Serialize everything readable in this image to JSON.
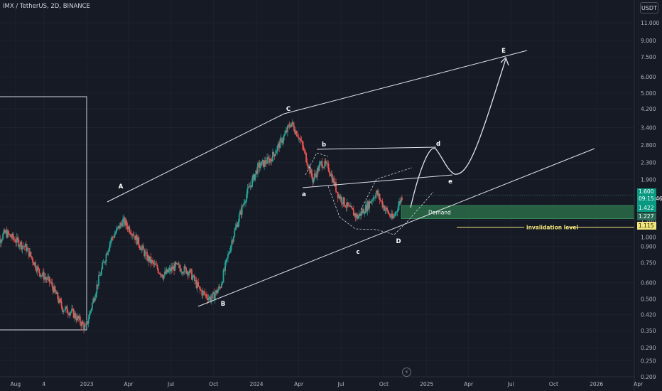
{
  "header": {
    "title": "IMX / TetherUS, 2D, BINANCE"
  },
  "currency_button": "USDT",
  "price_tags": {
    "price": "1.600",
    "countdown": "09:15:46",
    "demand_high": "1.422",
    "demand_low": "1.227",
    "invalidation": "1.115"
  },
  "flash_icon": "lightning-icon",
  "colors": {
    "background": "#161a25",
    "bull": "#26a69a",
    "bear": "#ef5350",
    "demand_zone": "#2e7d4f",
    "invalidation": "#f2e678",
    "wave_lines": "#e0e3eb"
  },
  "chart_data": {
    "type": "candlestick",
    "symbol": "IMX / TetherUS, 2D, BINANCE",
    "y_scale": "log",
    "y_ticks": [
      "11.000",
      "9.000",
      "7.500",
      "6.000",
      "5.000",
      "4.200",
      "3.400",
      "2.800",
      "2.300",
      "1.900",
      "1.600",
      "1.400",
      "1.200",
      "1.000",
      "0.900",
      "0.750",
      "0.600",
      "0.500",
      "0.420",
      "0.350",
      "0.290",
      "0.250",
      "0.209"
    ],
    "x_ticks": [
      "Aug",
      "4",
      "2023",
      "Apr",
      "Jul",
      "Oct",
      "2024",
      "Apr",
      "Jul",
      "Oct",
      "2025",
      "Apr",
      "Jul",
      "Oct",
      "2026",
      "Apr"
    ],
    "price_path": [
      [
        "2022-06-15",
        0.9
      ],
      [
        "2022-07-10",
        1.05
      ],
      [
        "2022-08-05",
        0.95
      ],
      [
        "2022-08-25",
        0.88
      ],
      [
        "2022-09-20",
        0.68
      ],
      [
        "2022-10-15",
        0.6
      ],
      [
        "2022-11-10",
        0.45
      ],
      [
        "2022-12-01",
        0.43
      ],
      [
        "2022-12-30",
        0.36
      ],
      [
        "2023-01-25",
        0.6
      ],
      [
        "2023-02-20",
        0.95
      ],
      [
        "2023-03-20",
        1.2
      ],
      [
        "2023-04-10",
        1.05
      ],
      [
        "2023-05-10",
        0.8
      ],
      [
        "2023-06-15",
        0.65
      ],
      [
        "2023-07-10",
        0.72
      ],
      [
        "2023-08-10",
        0.68
      ],
      [
        "2023-09-01",
        0.55
      ],
      [
        "2023-09-25",
        0.5
      ],
      [
        "2023-10-15",
        0.57
      ],
      [
        "2023-11-10",
        0.98
      ],
      [
        "2023-12-10",
        1.6
      ],
      [
        "2024-01-05",
        2.2
      ],
      [
        "2024-02-01",
        2.4
      ],
      [
        "2024-03-01",
        3.1
      ],
      [
        "2024-03-15",
        3.6
      ],
      [
        "2024-04-01",
        3.1
      ],
      [
        "2024-04-15",
        2.5
      ],
      [
        "2024-05-01",
        1.9
      ],
      [
        "2024-05-20",
        2.3
      ],
      [
        "2024-06-05",
        2.15
      ],
      [
        "2024-06-25",
        1.6
      ],
      [
        "2024-07-15",
        1.4
      ],
      [
        "2024-08-05",
        1.25
      ],
      [
        "2024-08-25",
        1.4
      ],
      [
        "2024-09-15",
        1.65
      ],
      [
        "2024-10-01",
        1.4
      ],
      [
        "2024-10-20",
        1.22
      ],
      [
        "2024-11-10",
        1.6
      ]
    ],
    "annotations": {
      "wave_labels": [
        "A",
        "B",
        "C",
        "D",
        "E",
        "a",
        "b",
        "c",
        "d",
        "e"
      ],
      "zone_label": "Demand",
      "line_label": "invalidation level"
    },
    "demand_zone": {
      "from": 1.227,
      "to": 1.422
    },
    "invalidation_level": 1.115,
    "current_price": 1.6
  }
}
